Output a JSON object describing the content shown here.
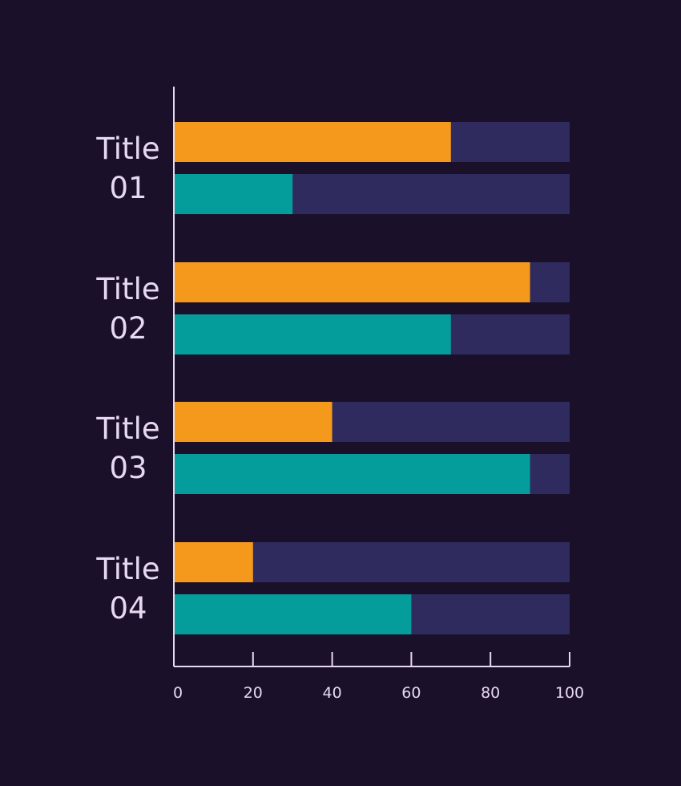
{
  "colors": {
    "background": "#1a1029",
    "axis": "#e6d9f0",
    "track": "#302b5e",
    "series_a": "#f5991c",
    "series_b": "#059d9c",
    "text": "#e6d9f0"
  },
  "chart_data": {
    "type": "bar",
    "orientation": "horizontal",
    "stacked_track": true,
    "categories": [
      {
        "line1": "Title",
        "line2": "01"
      },
      {
        "line1": "Title",
        "line2": "02"
      },
      {
        "line1": "Title",
        "line2": "03"
      },
      {
        "line1": "Title",
        "line2": "04"
      }
    ],
    "series": [
      {
        "values": [
          70,
          90,
          40,
          20
        ]
      },
      {
        "values": [
          30,
          70,
          90,
          60
        ]
      }
    ],
    "xlim": [
      0,
      100
    ],
    "xticks": [
      "0",
      "20",
      "40",
      "60",
      "80",
      "100"
    ],
    "xtick_values": [
      0,
      20,
      40,
      60,
      80,
      100
    ],
    "grid": false,
    "legend": "none"
  }
}
